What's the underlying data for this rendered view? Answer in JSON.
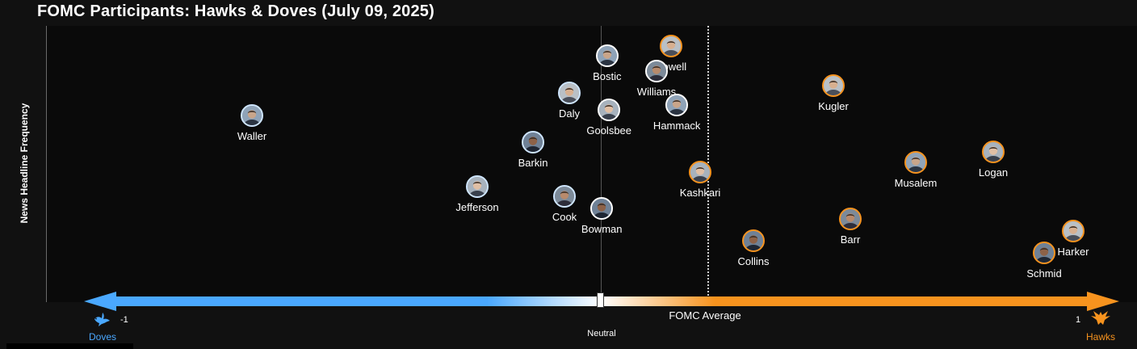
{
  "title": "FOMC Participants: Hawks & Doves (July 09, 2025)",
  "colors": {
    "doves": "#4aa8ff",
    "hawks": "#f7931e",
    "background": "#111111",
    "plot": "#0a0a0a"
  },
  "chart_data": {
    "type": "scatter",
    "title": "FOMC Participants: Hawks & Doves (July 09, 2025)",
    "xlabel": "",
    "ylabel": "News Headline Frequency",
    "xlim": [
      -1.09,
      1.09
    ],
    "ylim": [
      0,
      1
    ],
    "grid": false,
    "legend": "none",
    "x_axis_labels": {
      "left_value": "-1",
      "left_text": "Doves",
      "center_text": "Neutral",
      "right_value": "1",
      "right_text": "Hawks"
    },
    "reference_lines": [
      {
        "name": "neutral",
        "x": 0.0,
        "style": "solid"
      },
      {
        "name": "FOMC Average",
        "x": 0.215,
        "style": "dotted"
      }
    ],
    "points": [
      {
        "name": "Waller",
        "x": -0.72,
        "y": 0.69,
        "lean": "dove"
      },
      {
        "name": "Jefferson",
        "x": -0.255,
        "y": 0.4,
        "lean": "dove"
      },
      {
        "name": "Barkin",
        "x": -0.14,
        "y": 0.58,
        "lean": "dove"
      },
      {
        "name": "Daly",
        "x": -0.065,
        "y": 0.78,
        "lean": "dove"
      },
      {
        "name": "Cook",
        "x": -0.075,
        "y": 0.36,
        "lean": "dove"
      },
      {
        "name": "Bostic",
        "x": 0.013,
        "y": 0.93,
        "lean": "neutral"
      },
      {
        "name": "Goolsbee",
        "x": 0.017,
        "y": 0.71,
        "lean": "neutral"
      },
      {
        "name": "Bowman",
        "x": 0.002,
        "y": 0.31,
        "lean": "neutral"
      },
      {
        "name": "Powell",
        "x": 0.145,
        "y": 0.97,
        "lean": "hawk"
      },
      {
        "name": "Williams",
        "x": 0.115,
        "y": 0.87,
        "lean": "neutral"
      },
      {
        "name": "Hammack",
        "x": 0.157,
        "y": 0.73,
        "lean": "neutral"
      },
      {
        "name": "Kashkari",
        "x": 0.205,
        "y": 0.46,
        "lean": "hawk"
      },
      {
        "name": "Collins",
        "x": 0.315,
        "y": 0.18,
        "lean": "hawk"
      },
      {
        "name": "Kugler",
        "x": 0.48,
        "y": 0.81,
        "lean": "hawk"
      },
      {
        "name": "Barr",
        "x": 0.515,
        "y": 0.27,
        "lean": "hawk"
      },
      {
        "name": "Musalem",
        "x": 0.65,
        "y": 0.5,
        "lean": "hawk"
      },
      {
        "name": "Logan",
        "x": 0.81,
        "y": 0.54,
        "lean": "hawk"
      },
      {
        "name": "Schmid",
        "x": 0.915,
        "y": 0.13,
        "lean": "hawk"
      },
      {
        "name": "Harker",
        "x": 0.975,
        "y": 0.22,
        "lean": "hawk"
      }
    ]
  }
}
